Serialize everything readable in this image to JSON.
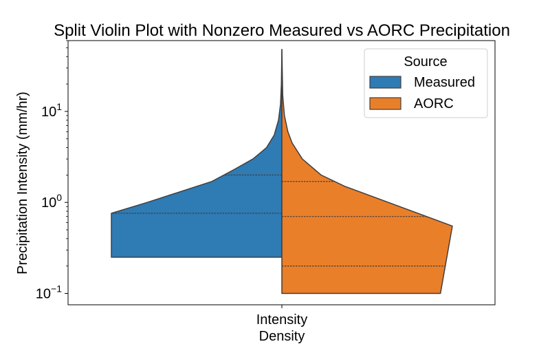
{
  "chart_data": {
    "type": "violin",
    "title": "Split Violin Plot with Nonzero Measured vs AORC Precipitation",
    "xlabel": "Intensity\nDensity",
    "ylabel": "Precipitation Intensity (mm/hr)",
    "yscale": "log",
    "ylim": [
      0.075,
      60
    ],
    "yticks": [
      {
        "value": 0.1,
        "base": "10",
        "exp": "−1"
      },
      {
        "value": 1,
        "base": "10",
        "exp": "0"
      },
      {
        "value": 10,
        "base": "10",
        "exp": "1"
      }
    ],
    "xticks": [
      "Intensity"
    ],
    "legend": {
      "title": "Source",
      "location": "top-right"
    },
    "series": [
      {
        "name": "Measured",
        "side": "left",
        "color": "#2f7bb4",
        "profile": [
          {
            "y": 0.25,
            "density": 1.0
          },
          {
            "y": 0.76,
            "density": 1.0
          },
          {
            "y": 1.0,
            "density": 0.79
          },
          {
            "y": 1.7,
            "density": 0.41
          },
          {
            "y": 2.3,
            "density": 0.28
          },
          {
            "y": 3.0,
            "density": 0.17
          },
          {
            "y": 4.0,
            "density": 0.09
          },
          {
            "y": 5.5,
            "density": 0.045
          },
          {
            "y": 8.0,
            "density": 0.02
          },
          {
            "y": 12.0,
            "density": 0.008
          },
          {
            "y": 20.0,
            "density": 0.003
          },
          {
            "y": 48.0,
            "density": 0.0
          }
        ],
        "quartiles": [
          0.76,
          2.0
        ]
      },
      {
        "name": "AORC",
        "side": "right",
        "color": "#ea7f2a",
        "profile": [
          {
            "y": 0.1,
            "density": 0.93
          },
          {
            "y": 0.55,
            "density": 1.0
          },
          {
            "y": 1.5,
            "density": 0.37
          },
          {
            "y": 2.0,
            "density": 0.23
          },
          {
            "y": 3.0,
            "density": 0.12
          },
          {
            "y": 4.5,
            "density": 0.06
          },
          {
            "y": 6.0,
            "density": 0.035
          },
          {
            "y": 9.0,
            "density": 0.015
          },
          {
            "y": 15.0,
            "density": 0.005
          },
          {
            "y": 48.0,
            "density": 0.0
          }
        ],
        "quartiles": [
          0.2,
          0.7,
          1.7
        ]
      }
    ],
    "grid": false
  }
}
